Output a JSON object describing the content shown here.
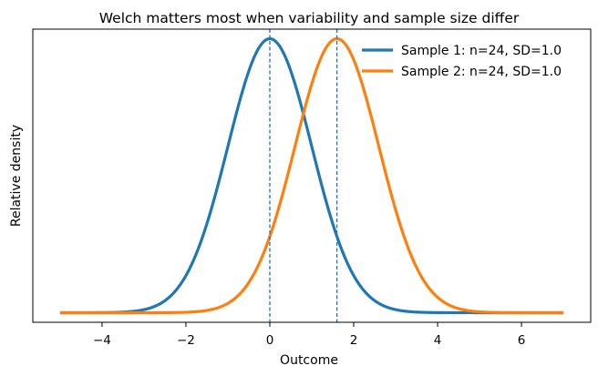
{
  "chart_data": {
    "type": "line",
    "title": "Welch matters most when variability and sample size differ",
    "xlabel": "Outcome",
    "ylabel": "Relative density",
    "xlim": [
      -5.65,
      7.65
    ],
    "ylim": [
      -0.035,
      1.035
    ],
    "x_ticks": [
      -4,
      -2,
      0,
      2,
      4,
      6
    ],
    "x_tick_labels": [
      "−4",
      "−2",
      "0",
      "2",
      "4",
      "6"
    ],
    "y_ticks_shown": false,
    "x_range": [
      -5,
      7
    ],
    "series": [
      {
        "name": "Sample 1: n=24, SD=1.0",
        "distribution": "normal",
        "mean": 0.0,
        "sd": 1.0,
        "peak": 1.0,
        "color": "#1f77b4"
      },
      {
        "name": "Sample 2: n=24, SD=1.0",
        "distribution": "normal",
        "mean": 1.6,
        "sd": 1.0,
        "peak": 1.0,
        "color": "#ff7f0e"
      }
    ],
    "reference_lines": [
      {
        "x": 0.0,
        "style": "dashed",
        "color": "#1f77b4"
      },
      {
        "x": 1.6,
        "style": "dashed",
        "color": "#1f77b4"
      }
    ],
    "grid": false,
    "legend_position": "upper right"
  }
}
